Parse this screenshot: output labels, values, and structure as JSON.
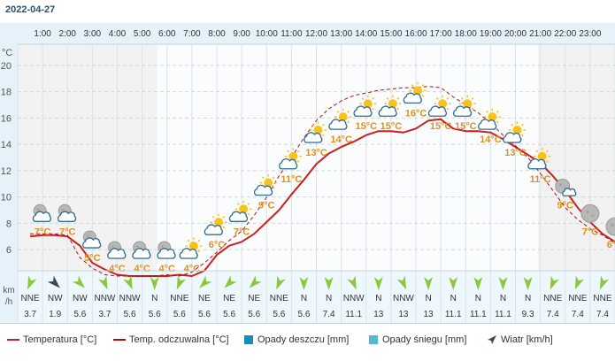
{
  "date": "2022-04-27",
  "colors": {
    "temperature": "#cc1f1f",
    "feels_like": "#aa1212",
    "rain": "#1b8cb6",
    "snow": "#55b6d6",
    "wind_arrow": "#8dc63f",
    "wind_arrow_strong": "#3a4a5a",
    "temp_label": "#e0901e",
    "night_band": "#f2f2f2",
    "day_band": "#fafcfd",
    "header_bg": "#e6f2f9"
  },
  "chart_data": {
    "type": "line",
    "x_unit": "hour",
    "hours": [
      "1:00",
      "2:00",
      "3:00",
      "4:00",
      "5:00",
      "6:00",
      "7:00",
      "8:00",
      "9:00",
      "10:00",
      "11:00",
      "12:00",
      "13:00",
      "14:00",
      "15:00",
      "16:00",
      "17:00",
      "18:00",
      "19:00",
      "20:00",
      "21:00",
      "22:00",
      "23:00"
    ],
    "ylabel": "°C",
    "y_ticks": [
      6,
      8,
      10,
      12,
      14,
      16,
      18,
      20
    ],
    "ylim": [
      4.4,
      21.6
    ],
    "grid": true,
    "series": [
      {
        "name": "Temperatura [°C]",
        "style": "solid",
        "x": [
          0.5,
          1.0,
          1.5,
          2.0,
          2.5,
          3.0,
          3.5,
          4.0,
          4.5,
          5.0,
          5.5,
          6.0,
          6.5,
          7.0,
          7.5,
          8.0,
          8.5,
          9.0,
          9.5,
          10.0,
          10.5,
          11.0,
          11.5,
          12.0,
          12.5,
          13.0,
          13.5,
          14.0,
          14.5,
          15.0,
          15.5,
          16.0,
          16.5,
          17.0,
          17.5,
          18.0,
          18.5,
          19.0,
          19.5,
          20.0,
          20.5,
          21.0,
          21.5,
          22.0,
          22.5,
          23.0,
          23.5,
          24.0
        ],
        "values": [
          7.0,
          7.1,
          7.1,
          7.0,
          6.3,
          5.0,
          4.5,
          4.1,
          4.0,
          4.0,
          4.0,
          4.0,
          4.1,
          4.0,
          4.4,
          5.6,
          6.3,
          6.6,
          7.2,
          8.1,
          9.0,
          10.2,
          11.3,
          12.5,
          13.3,
          13.8,
          14.2,
          14.7,
          15.0,
          15.0,
          14.9,
          15.2,
          15.8,
          15.9,
          15.2,
          15.0,
          15.0,
          14.9,
          14.4,
          13.8,
          13.2,
          12.6,
          11.6,
          10.5,
          9.2,
          8.1,
          7.2,
          6.6
        ]
      },
      {
        "name": "Temp. odczuwalna [°C]",
        "style": "dashed",
        "x": [
          0.5,
          1.0,
          1.5,
          2.0,
          2.5,
          3.0,
          3.5,
          4.0,
          4.5,
          5.0,
          5.5,
          6.0,
          6.5,
          7.0,
          7.5,
          8.0,
          8.5,
          9.0,
          9.5,
          10.0,
          10.5,
          11.0,
          11.5,
          12.0,
          12.5,
          13.0,
          13.5,
          14.0,
          14.5,
          15.0,
          15.5,
          16.0,
          16.5,
          17.0,
          17.5,
          18.0,
          18.5,
          19.0,
          19.5,
          20.0,
          20.5,
          21.0,
          21.5,
          22.0,
          22.5,
          23.0,
          23.5,
          24.0
        ],
        "values": [
          7.2,
          7.2,
          7.2,
          7.1,
          5.4,
          4.6,
          4.1,
          4.0,
          4.0,
          4.0,
          4.0,
          4.1,
          4.0,
          4.3,
          5.0,
          5.8,
          6.7,
          7.4,
          8.6,
          10.0,
          11.6,
          13.0,
          14.5,
          15.8,
          16.7,
          17.3,
          17.7,
          17.9,
          18.1,
          18.2,
          18.3,
          18.3,
          18.4,
          18.3,
          17.6,
          17.0,
          16.4,
          15.6,
          14.7,
          13.9,
          13.0,
          11.8,
          10.5,
          9.2,
          8.3,
          7.6,
          7.1,
          6.5
        ]
      }
    ],
    "hourly_labels": [
      {
        "hour": 1,
        "temp": "7°C",
        "icon": "night-cloud"
      },
      {
        "hour": 2,
        "temp": "7°C",
        "icon": "night-cloud"
      },
      {
        "hour": 3,
        "temp": "5°C",
        "icon": "night-cloud"
      },
      {
        "hour": 4,
        "temp": "4°C",
        "icon": "night-cloud"
      },
      {
        "hour": 5,
        "temp": "4°C",
        "icon": "night-cloud"
      },
      {
        "hour": 6,
        "temp": "4°C",
        "icon": "night-cloud"
      },
      {
        "hour": 7,
        "temp": "4°C",
        "icon": "sun-cloud"
      },
      {
        "hour": 8,
        "temp": "6°C",
        "icon": "sun-cloud"
      },
      {
        "hour": 9,
        "temp": "7°C",
        "icon": "sun-cloud"
      },
      {
        "hour": 10,
        "temp": "9°C",
        "icon": "sun-cloud"
      },
      {
        "hour": 11,
        "temp": "11°C",
        "icon": "sun-cloud"
      },
      {
        "hour": 12,
        "temp": "13°C",
        "icon": "sun-cloud"
      },
      {
        "hour": 13,
        "temp": "14°C",
        "icon": "sun-cloud"
      },
      {
        "hour": 14,
        "temp": "15°C",
        "icon": "sun-cloud"
      },
      {
        "hour": 15,
        "temp": "15°C",
        "icon": "sun-cloud"
      },
      {
        "hour": 16,
        "temp": "16°C",
        "icon": "sun-cloud"
      },
      {
        "hour": 17,
        "temp": "15°C",
        "icon": "sun-cloud"
      },
      {
        "hour": 18,
        "temp": "15°C",
        "icon": "sun-cloud"
      },
      {
        "hour": 19,
        "temp": "14°C",
        "icon": "sun-cloud"
      },
      {
        "hour": 20,
        "temp": "13°C",
        "icon": "sun-cloud"
      },
      {
        "hour": 21,
        "temp": "11°C",
        "icon": "sun-cloud"
      },
      {
        "hour": 22,
        "temp": "9°C",
        "icon": "moon-cloud"
      },
      {
        "hour": 23,
        "temp": "7°C",
        "icon": "moon"
      },
      {
        "hour": 24,
        "temp": "6°C",
        "icon": "moon"
      }
    ],
    "wind": {
      "unit_label": [
        "km",
        "/h"
      ],
      "directions": [
        "NNE",
        "NW",
        "NW",
        "NNW",
        "NNW",
        "N",
        "NNE",
        "NE",
        "NE",
        "NE",
        "NNE",
        "N",
        "N",
        "NNW",
        "N",
        "NNW",
        "N",
        "N",
        "N",
        "N",
        "N",
        "NNE",
        "NNE",
        "NNE"
      ],
      "speeds": [
        "3.7",
        "1.9",
        "5.6",
        "3.7",
        "5.6",
        "5.6",
        "5.6",
        "5.6",
        "5.6",
        "5.6",
        "5.6",
        "5.6",
        "7.4",
        "11.1",
        "13",
        "13",
        "13",
        "11.1",
        "11.1",
        "11.1",
        "9.3",
        "7.4",
        "7.4",
        "7.4"
      ]
    }
  },
  "legend": {
    "temperature": "Temperatura [°C]",
    "feels_like": "Temp. odczuwalna [°C]",
    "rain": "Opady deszczu [mm]",
    "snow": "Opady śniegu [mm]",
    "wind": "Wiatr [km/h]"
  }
}
